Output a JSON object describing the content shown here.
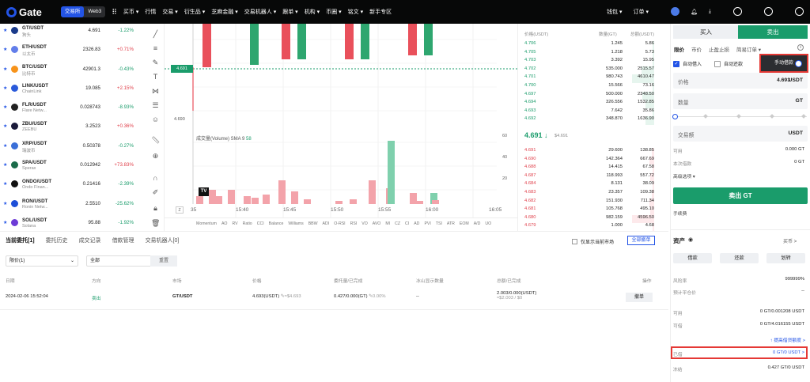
{
  "nav": {
    "logo": "Gate",
    "mode_tabs": [
      "交易所",
      "Web3"
    ],
    "items": [
      "买币 ▾",
      "行情",
      "交易 ▾",
      "衍生品 ▾",
      "芝麻金融 ▾",
      "交易机器人 ▾",
      "跟单 ▾",
      "机构 ▾",
      "币圈 ▾",
      "铭文 ▾",
      "新手专区"
    ],
    "right": [
      "钱包 ▾",
      "订单 ▾"
    ]
  },
  "markets": [
    {
      "pair": "GT/USDT",
      "sub": "狗头",
      "price": "4.691",
      "change": "-1.22%",
      "dir": "down",
      "color": "#1a3a8a"
    },
    {
      "pair": "ETH/USDT",
      "sub": "以太币",
      "price": "2326.83",
      "change": "+0.71%",
      "dir": "up",
      "color": "#627eea"
    },
    {
      "pair": "BTC/USDT",
      "sub": "比特币",
      "price": "42901.3",
      "change": "-0.43%",
      "dir": "down",
      "color": "#f7931a"
    },
    {
      "pair": "LINK/USDT",
      "sub": "ChainLink",
      "price": "19.085",
      "change": "+2.15%",
      "dir": "up",
      "color": "#2a5ada"
    },
    {
      "pair": "FLR/USDT",
      "sub": "Flare Netw...",
      "price": "0.028743",
      "change": "-8.93%",
      "dir": "down",
      "color": "#222222"
    },
    {
      "pair": "ZBU/USDT",
      "sub": "ZEEBU",
      "price": "3.2523",
      "change": "+0.36%",
      "dir": "up",
      "color": "#1b1b3a"
    },
    {
      "pair": "XRP/USDT",
      "sub": "瑞波币",
      "price": "0.50378",
      "change": "-0.27%",
      "dir": "down",
      "color": "#3a6fd8"
    },
    {
      "pair": "SPA/USDT",
      "sub": "Sperax",
      "price": "0.012942",
      "change": "+73.83%",
      "dir": "up",
      "color": "#1a6b4a"
    },
    {
      "pair": "ONDO/USDT",
      "sub": "Ondo Finan...",
      "price": "0.21416",
      "change": "-2.39%",
      "dir": "down",
      "color": "#111111"
    },
    {
      "pair": "RON/USDT",
      "sub": "Ronin Netw...",
      "price": "2.5510",
      "change": "-25.62%",
      "dir": "down",
      "color": "#1d4fd8"
    },
    {
      "pair": "SOL/USDT",
      "sub": "Solana",
      "price": "95.88",
      "change": "-1.92%",
      "dir": "down",
      "color": "#6d3bd6"
    }
  ],
  "chart": {
    "price_label": "4.691",
    "price_low_label": "4.690",
    "volume_title": "成交量(Volume) SMA 9",
    "volume_value": "58",
    "vol_ticks": [
      "60",
      "40",
      "20"
    ],
    "time_labels": [
      "35",
      "15:40",
      "15:45",
      "15:50",
      "15:55",
      "16:00",
      "16:05"
    ],
    "indicators": [
      "Momentum",
      "AO",
      "RV",
      "Ratio",
      "CCI",
      "Balance",
      "Williams",
      "BBW",
      "ADI",
      "O-RSI",
      "RSI",
      "VO",
      "AVO",
      "MI",
      "CZ",
      "CI",
      "AD",
      "PVI",
      "TSI",
      "ATR",
      "EOM",
      "A/D",
      "UO"
    ]
  },
  "orderbook": {
    "headers": [
      "价格(USDT)",
      "数量(GT)",
      "总额(USDT)"
    ],
    "asks": [
      [
        "4.706",
        "1.245",
        "5.86"
      ],
      [
        "4.705",
        "1.218",
        "5.73"
      ],
      [
        "4.703",
        "3.392",
        "15.95"
      ],
      [
        "4.702",
        "535.000",
        "2515.57"
      ],
      [
        "4.701",
        "980.743",
        "4610.47"
      ],
      [
        "4.700",
        "15.566",
        "73.16"
      ],
      [
        "4.697",
        "500.000",
        "2348.50"
      ],
      [
        "4.694",
        "326.556",
        "1532.85"
      ],
      [
        "4.693",
        "7.642",
        "35.86"
      ],
      [
        "4.692",
        "348.870",
        "1636.90"
      ]
    ],
    "last_price": "4.691 ↓",
    "last_sub": "$4.691",
    "bids": [
      [
        "4.691",
        "29.600",
        "138.85"
      ],
      [
        "4.690",
        "142.364",
        "667.69"
      ],
      [
        "4.688",
        "14.415",
        "67.58"
      ],
      [
        "4.687",
        "118.993",
        "557.72"
      ],
      [
        "4.684",
        "8.131",
        "38.09"
      ],
      [
        "4.683",
        "23.357",
        "109.38"
      ],
      [
        "4.682",
        "151.930",
        "711.34"
      ],
      [
        "4.681",
        "105.768",
        "495.10"
      ],
      [
        "4.680",
        "982.159",
        "4596.50"
      ],
      [
        "4.679",
        "1.000",
        "4.68"
      ]
    ]
  },
  "trade": {
    "tab_buy": "买入",
    "tab_sell": "卖出",
    "order_types": [
      "限价",
      "市价",
      "止盈止损",
      "简易订单 ▾"
    ],
    "auto_borrow": "自动借入",
    "auto_repay": "自动还款",
    "manual_borrow": "手动借款",
    "price_label": "价格",
    "price_value": "4.693",
    "price_unit": "USDT",
    "amount_label": "数量",
    "amount_unit": "GT",
    "total_label": "交易额",
    "total_unit": "USDT",
    "available_label": "可用",
    "available_value": "0.000 GT",
    "borrow_label": "本次借款",
    "borrow_value": "0 GT",
    "advanced": "高级选项 ▾",
    "sell_button": "卖出 GT",
    "fee_label": "手续费"
  },
  "assets": {
    "title": "资产",
    "buy_link": "买币 >",
    "buttons": [
      "借款",
      "还款",
      "划转"
    ],
    "risk_label": "风险率",
    "risk_value": "999999%",
    "liq_label": "预计平仓价",
    "liq_value": "--",
    "avail1_label": "可用",
    "avail1_value": "0 GT/0.001208 USDT",
    "avail2_label": "可借",
    "avail2_value": "0 GT/4.016155 USDT",
    "raise_limit": "↑ 提高借贷额度 >",
    "borrowed_label": "已借",
    "borrowed_value": "0 GT/0 USDT >",
    "frozen_label": "冻结",
    "frozen_value": "0.427 GT/0 USDT"
  },
  "orders": {
    "tabs": [
      "当前委托[1]",
      "委托历史",
      "成交记录",
      "借款管理",
      "交易机器人[0]"
    ],
    "only_current": "仅显示当前市场",
    "cancel_all": "全部撤单",
    "filter1": "限价(1)",
    "filter2": "全部",
    "reset": "重置",
    "headers": [
      "日期",
      "方向",
      "市场",
      "价格",
      "委托量/已完成",
      "冰山显示数量",
      "总额/已完成",
      "操作"
    ],
    "row": {
      "date": "2024-02-06 15:52:04",
      "side": "卖出",
      "market": "GT/USDT",
      "price": "4.693(USDT)",
      "price_sub": "≈$4.693",
      "amount": "0.427/0.000(GT)",
      "amount_pct": "0.00%",
      "iceberg": "--",
      "total": "2.003/0.000(USDT)",
      "total_sub": "≈$2.003 / $0",
      "action": "撤单"
    }
  },
  "colors": {
    "up": "#1a9c6b",
    "down": "#e0404b",
    "accent": "#2354e6",
    "highlight": "#e53935"
  }
}
